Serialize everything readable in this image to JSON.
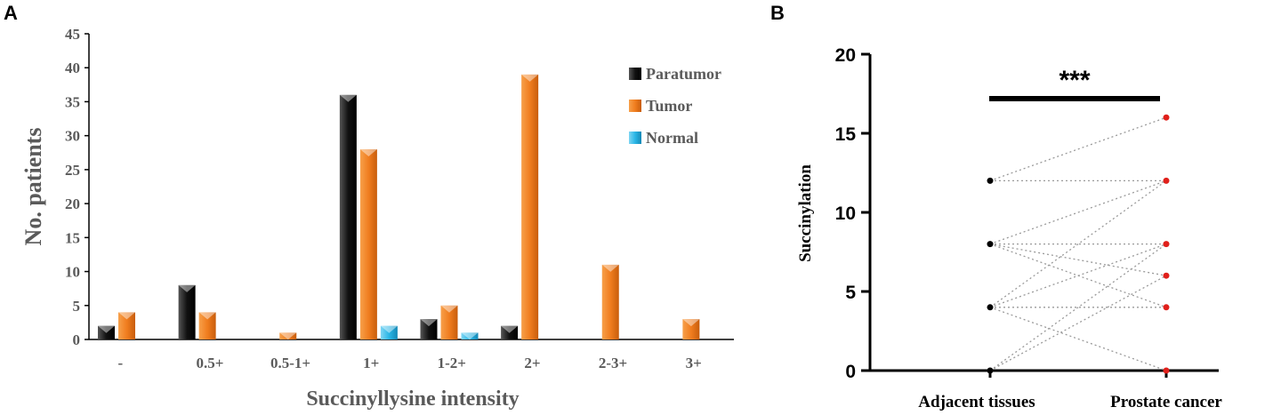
{
  "panels": {
    "a": "A",
    "b": "B"
  },
  "chart_data": [
    {
      "type": "bar",
      "panel": "A",
      "categories": [
        "-",
        "0.5+",
        "0.5-1+",
        "1+",
        "1-2+",
        "2+",
        "2-3+",
        "3+"
      ],
      "series": [
        {
          "name": "Paratumor",
          "color": "#1a1a1a",
          "values": [
            2,
            8,
            0,
            36,
            3,
            2,
            0,
            0
          ]
        },
        {
          "name": "Tumor",
          "color": "#f07d1f",
          "values": [
            4,
            4,
            1,
            28,
            5,
            39,
            11,
            3
          ]
        },
        {
          "name": "Normal",
          "color": "#2ab6e6",
          "values": [
            0,
            0,
            0,
            2,
            1,
            0,
            0,
            0
          ]
        }
      ],
      "xlabel": "Succinyllysine  intensity",
      "ylabel": "No. patients",
      "ylim": [
        0,
        45
      ],
      "yticks": [
        0,
        5,
        10,
        15,
        20,
        25,
        30,
        35,
        40,
        45
      ],
      "legend_position": "top-right"
    },
    {
      "type": "scatter",
      "panel": "B",
      "groups": [
        "Adjacent tissues",
        "Prostate cancer"
      ],
      "point_colors": [
        "#000000",
        "#e0201b"
      ],
      "pairs": [
        [
          12,
          16
        ],
        [
          12,
          12
        ],
        [
          8,
          12
        ],
        [
          8,
          8
        ],
        [
          8,
          4
        ],
        [
          8,
          6
        ],
        [
          4,
          4
        ],
        [
          4,
          8
        ],
        [
          4,
          12
        ],
        [
          4,
          0
        ],
        [
          0,
          6
        ],
        [
          0,
          8
        ]
      ],
      "ylabel": "Succinylation",
      "ylim": [
        0,
        20
      ],
      "yticks": [
        0,
        5,
        10,
        15,
        20
      ],
      "significance": "***"
    }
  ]
}
